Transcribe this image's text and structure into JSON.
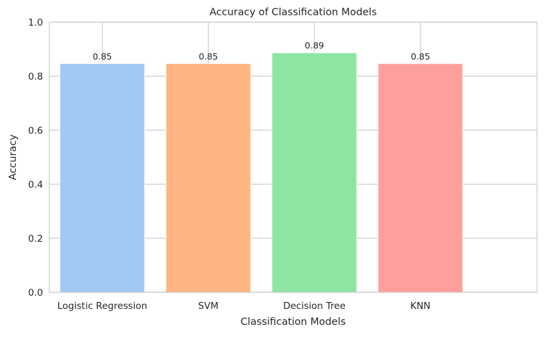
{
  "chart_data": {
    "type": "bar",
    "title": "Accuracy of Classification Models",
    "xlabel": "Classification Models",
    "ylabel": "Accuracy",
    "categories": [
      "Logistic Regression",
      "SVM",
      "Decision Tree",
      "KNN"
    ],
    "values": [
      0.8467,
      0.8467,
      0.8867,
      0.8467
    ],
    "data_labels": [
      "0.85",
      "0.85",
      "0.89",
      "0.85"
    ],
    "colors": [
      "#a1c9f4",
      "#ffb482",
      "#8de5a1",
      "#ff9f9b"
    ],
    "ylim": [
      0,
      1.0
    ],
    "yticks": [
      0.0,
      0.2,
      0.4,
      0.6,
      0.8,
      1.0
    ],
    "ytick_labels": [
      "0.0",
      "0.2",
      "0.4",
      "0.6",
      "0.8",
      "1.0"
    ],
    "grid": true,
    "grid_color": "#cccccc",
    "legend": "none"
  }
}
